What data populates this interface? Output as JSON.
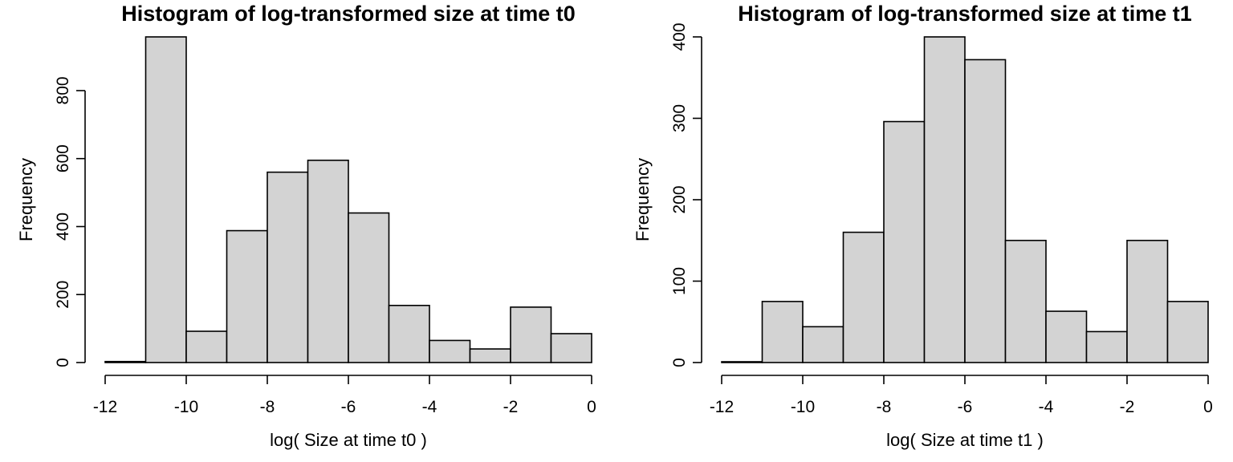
{
  "chart_data": [
    {
      "type": "bar",
      "title": "Histogram of log-transformed size at time t0",
      "xlabel": "log( Size at time t0 )",
      "ylabel": "Frequency",
      "bins": [
        [
          -12,
          -11
        ],
        [
          -11,
          -10
        ],
        [
          -10,
          -9
        ],
        [
          -9,
          -8
        ],
        [
          -8,
          -7
        ],
        [
          -7,
          -6
        ],
        [
          -6,
          -5
        ],
        [
          -5,
          -4
        ],
        [
          -4,
          -3
        ],
        [
          -3,
          -2
        ],
        [
          -2,
          -1
        ],
        [
          -1,
          0
        ]
      ],
      "values": [
        3,
        958,
        92,
        388,
        560,
        595,
        440,
        168,
        65,
        40,
        163,
        85
      ],
      "xlim": [
        -12,
        0
      ],
      "ylim": [
        0,
        958
      ],
      "xticks": [
        -12,
        -10,
        -8,
        -6,
        -4,
        -2,
        0
      ],
      "xtick_labels": [
        "-12",
        "-10",
        "-8",
        "-6",
        "-4",
        "-2",
        "0"
      ],
      "yticks": [
        0,
        200,
        400,
        600,
        800
      ],
      "ytick_labels": [
        "0",
        "200",
        "400",
        "600",
        "800"
      ],
      "bar_color": "#d3d3d3",
      "grid": false
    },
    {
      "type": "bar",
      "title": "Histogram of log-transformed size at time t1",
      "xlabel": "log( Size at time t1 )",
      "ylabel": "Frequency",
      "bins": [
        [
          -12,
          -11
        ],
        [
          -11,
          -10
        ],
        [
          -10,
          -9
        ],
        [
          -9,
          -8
        ],
        [
          -8,
          -7
        ],
        [
          -7,
          -6
        ],
        [
          -6,
          -5
        ],
        [
          -5,
          -4
        ],
        [
          -4,
          -3
        ],
        [
          -3,
          -2
        ],
        [
          -2,
          -1
        ],
        [
          -1,
          0
        ]
      ],
      "values": [
        1,
        75,
        44,
        160,
        296,
        400,
        372,
        150,
        63,
        38,
        150,
        75
      ],
      "xlim": [
        -12,
        0
      ],
      "ylim": [
        0,
        400
      ],
      "xticks": [
        -12,
        -10,
        -8,
        -6,
        -4,
        -2,
        0
      ],
      "xtick_labels": [
        "-12",
        "-10",
        "-8",
        "-6",
        "-4",
        "-2",
        "0"
      ],
      "yticks": [
        0,
        100,
        200,
        300,
        400
      ],
      "ytick_labels": [
        "0",
        "100",
        "200",
        "300",
        "400"
      ],
      "bar_color": "#d3d3d3",
      "grid": false
    }
  ]
}
